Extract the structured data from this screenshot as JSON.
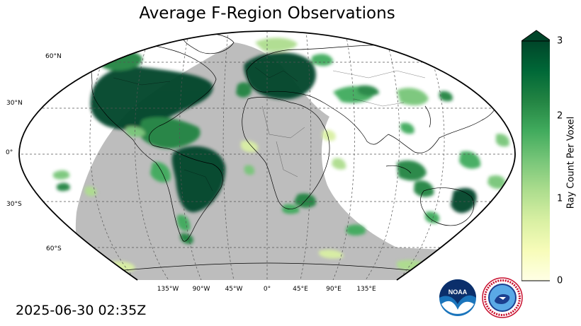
{
  "title": "Average F-Region Observations",
  "timestamp": "2025-06-30 02:35Z",
  "lat_labels": [
    "60°N",
    "30°N",
    "0°",
    "30°S",
    "60°S"
  ],
  "lon_labels": [
    "135°W",
    "90°W",
    "45°W",
    "0°",
    "45°E",
    "90°E",
    "135°E"
  ],
  "colorbar": {
    "label": "Ray Count Per Voxel",
    "ticks": [
      "0",
      "1",
      "2",
      "3"
    ],
    "min": 0,
    "max": 3,
    "extend": "max",
    "colormap": [
      "#ffffe5",
      "#f7fcb9",
      "#d9f0a3",
      "#addd8e",
      "#78c679",
      "#41ab5d",
      "#238443",
      "#006837",
      "#004529"
    ]
  },
  "map": {
    "projection": "Robinson",
    "night_shade_color": "#bdbdbd",
    "features": [
      "coastlines",
      "country borders",
      "gridlines",
      "day-night terminator"
    ]
  },
  "logos": [
    {
      "name": "NOAA",
      "text": "NOAA"
    },
    {
      "name": "National Weather Service",
      "text": "NATIONAL WEATHER SERVICE"
    }
  ]
}
